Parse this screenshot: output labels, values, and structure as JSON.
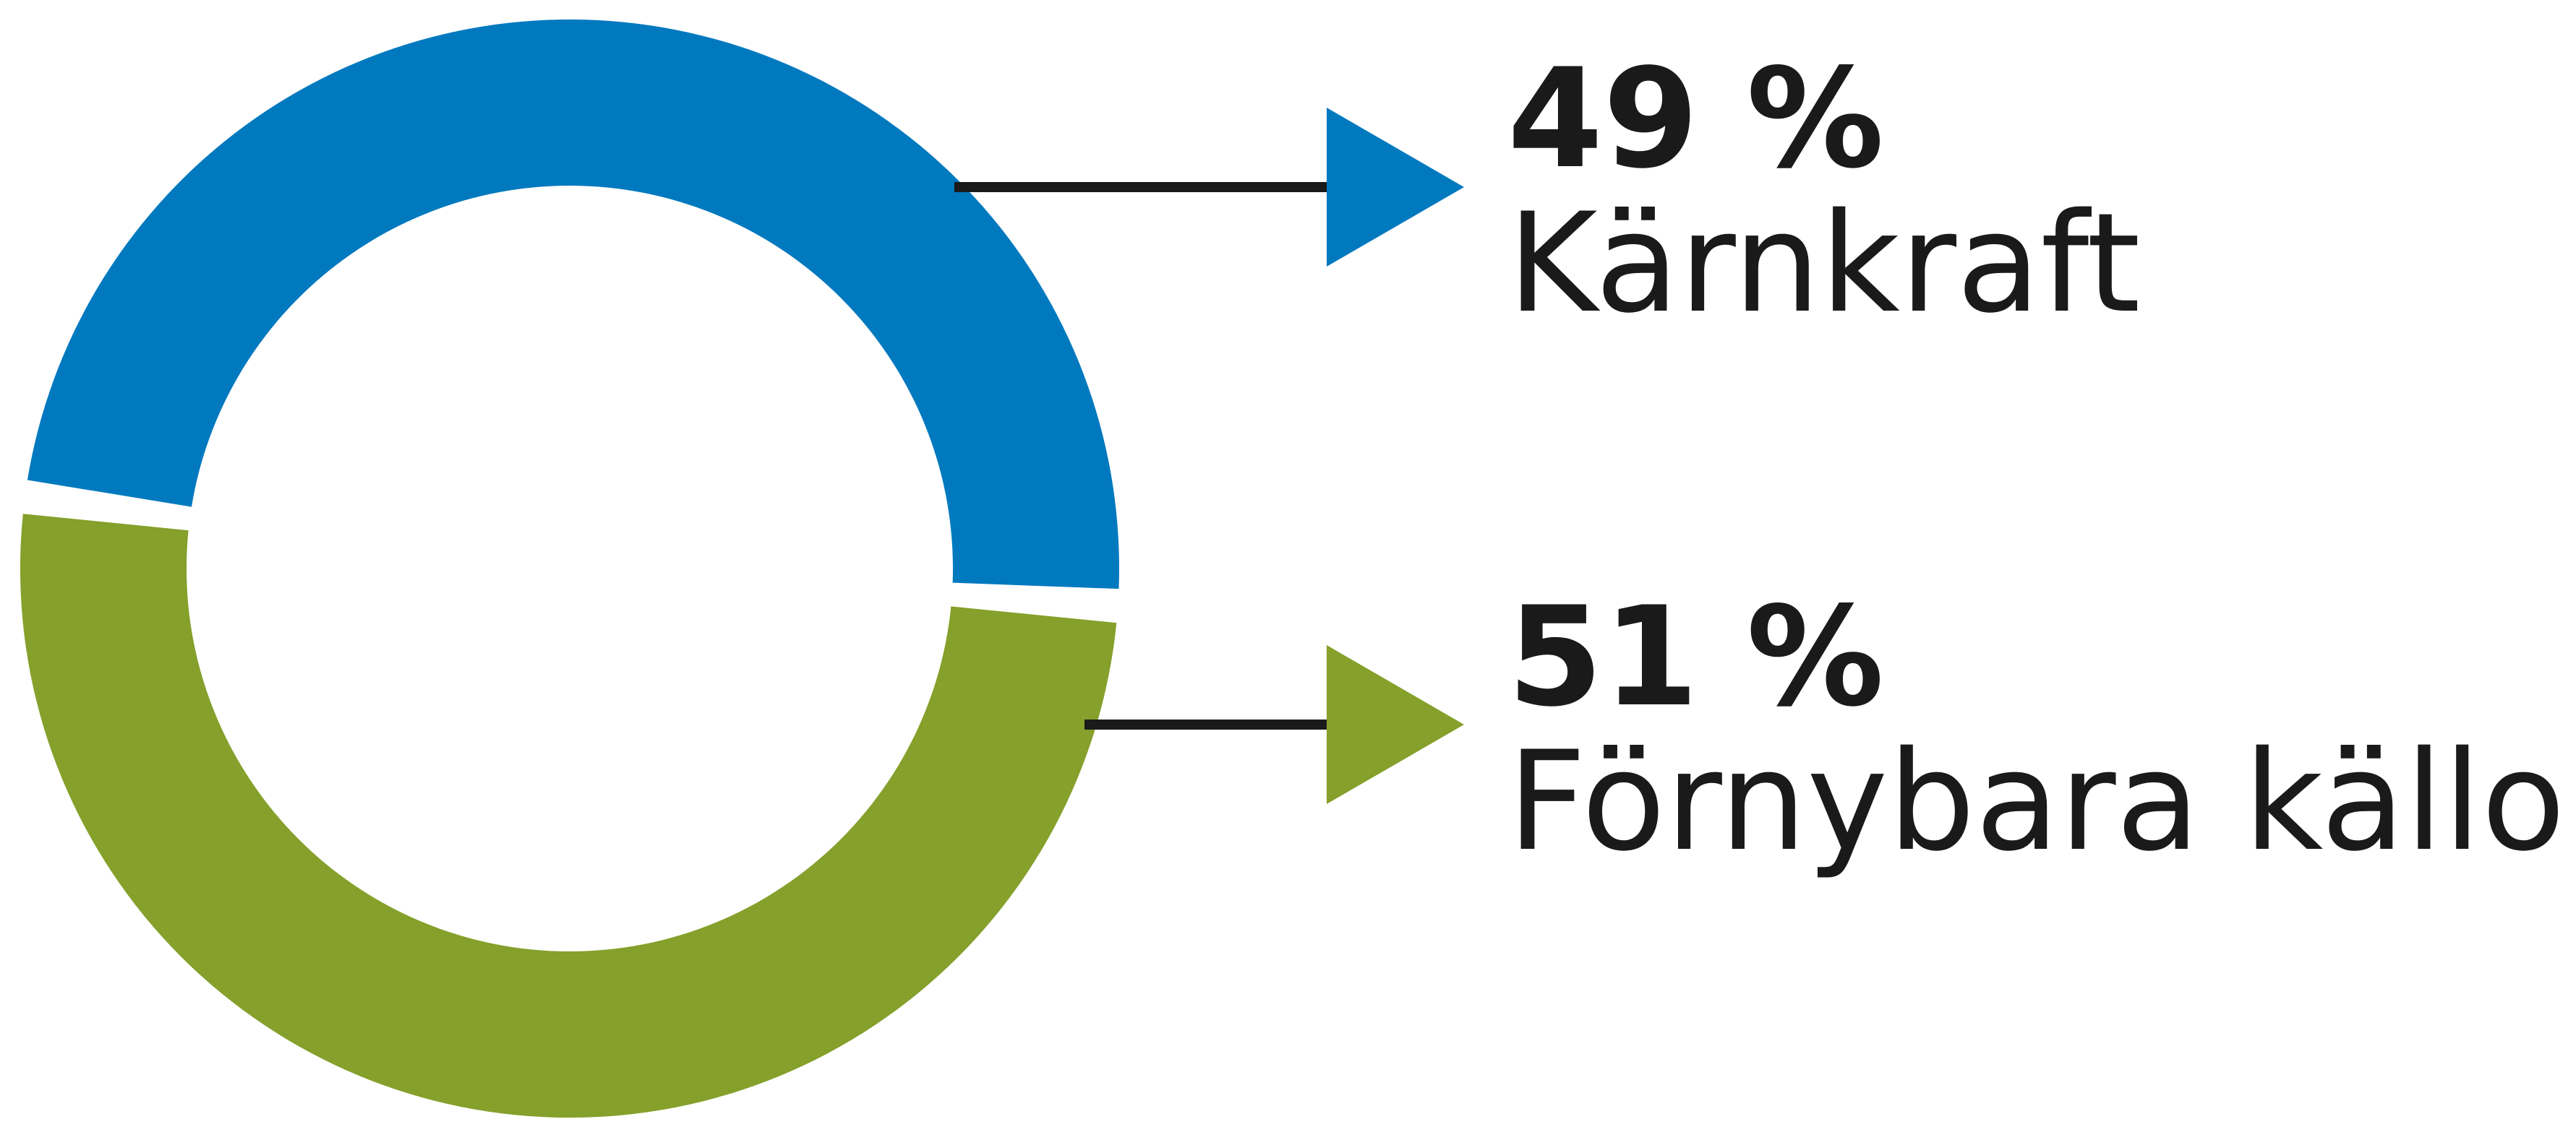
{
  "chart_data": {
    "type": "pie",
    "variant": "donut",
    "title": "",
    "unit": "%",
    "categories": [
      "Kärnkraft",
      "Förnybara källor"
    ],
    "values": [
      49,
      51
    ],
    "value_labels": [
      "49 %",
      "51 %"
    ],
    "colors": [
      "#0079bf",
      "#85a02b"
    ],
    "connector_color": "#1a1a1a",
    "legend": "right",
    "grid": false
  }
}
